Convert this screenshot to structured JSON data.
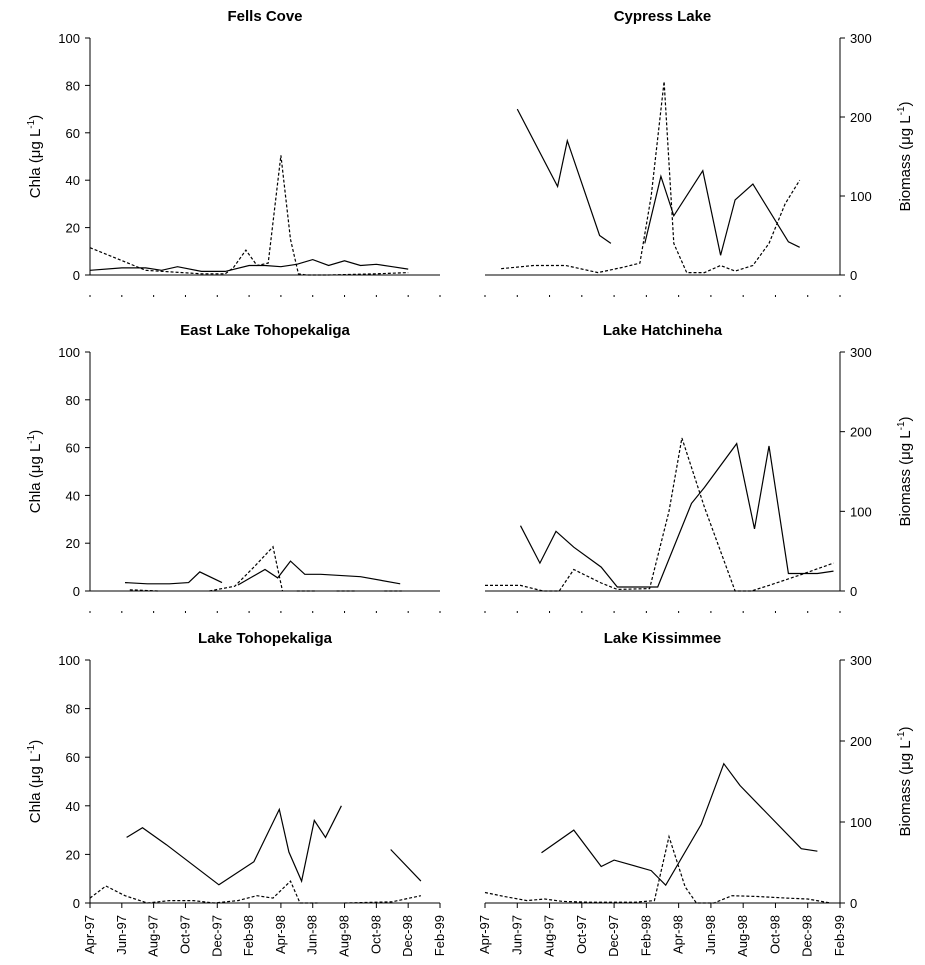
{
  "figure": {
    "left_axis_label": "Chla (μg L",
    "left_axis_sup": "-1",
    "left_axis_close": ")",
    "right_axis_label": "Biomass (μg L",
    "right_axis_sup": "-1",
    "right_axis_close": ")",
    "left_ticks": [
      "0",
      "20",
      "40",
      "60",
      "80",
      "100"
    ],
    "right_ticks": [
      "0",
      "100",
      "200",
      "300"
    ],
    "x_ticks": [
      "Apr-97",
      "Jun-97",
      "Aug-97",
      "Oct-97",
      "Dec-97",
      "Feb-98",
      "Apr-98",
      "Jun-98",
      "Aug-98",
      "Oct-98",
      "Dec-98",
      "Feb-99"
    ]
  },
  "chart_data": [
    {
      "type": "line",
      "title": "Fells Cove",
      "ylabel": "Chla (μg L-1)",
      "ylim": [
        0,
        100
      ],
      "xlim": [
        0,
        22
      ],
      "series": [
        {
          "style": "solid",
          "points": [
            [
              0,
              2
            ],
            [
              2,
              3
            ],
            [
              3.5,
              3
            ],
            [
              4.5,
              2
            ],
            [
              5.5,
              3.5
            ],
            [
              7,
              1.5
            ],
            [
              8.5,
              1.5
            ],
            [
              10,
              4
            ],
            [
              11,
              4
            ],
            [
              12,
              3.5
            ],
            [
              13,
              4.5
            ],
            [
              14,
              6.5
            ],
            [
              15,
              4
            ],
            [
              16,
              6
            ],
            [
              17,
              4
            ],
            [
              18,
              4.5
            ],
            [
              19,
              3.5
            ],
            [
              20,
              2.5
            ]
          ]
        },
        {
          "style": "dashed",
          "points": [
            [
              0,
              11.5
            ],
            [
              3.5,
              2
            ],
            [
              7,
              0.5
            ],
            [
              8.5,
              0.5
            ],
            [
              9,
              3
            ],
            [
              9.8,
              10.5
            ],
            [
              10.5,
              4
            ],
            [
              11.2,
              5
            ],
            [
              12,
              50.5
            ],
            [
              12.6,
              15
            ],
            [
              13.1,
              0.5
            ],
            [
              13.6,
              0
            ],
            [
              15,
              0
            ],
            [
              18,
              0.5
            ],
            [
              20,
              1
            ]
          ]
        }
      ]
    },
    {
      "type": "line",
      "title": "Cypress Lake",
      "ylabel": "Biomass (μg L-1)",
      "ylim": [
        0,
        300
      ],
      "xlim": [
        0,
        22
      ],
      "series": [
        {
          "style": "solid",
          "points": [
            [
              2,
              210
            ],
            [
              4.5,
              112
            ],
            [
              5.1,
              170
            ],
            [
              7.1,
              50
            ],
            [
              7.8,
              40
            ],
            [
              null,
              null
            ],
            [
              9.9,
              40
            ],
            [
              10.9,
              125
            ],
            [
              11.7,
              75
            ],
            [
              13.5,
              132
            ],
            [
              14.6,
              25
            ],
            [
              15.5,
              95
            ],
            [
              16.6,
              115
            ],
            [
              18.8,
              42
            ],
            [
              19.5,
              35
            ]
          ]
        },
        {
          "style": "dashed",
          "points": [
            [
              1,
              8
            ],
            [
              3,
              12
            ],
            [
              5,
              12
            ],
            [
              7,
              3
            ],
            [
              8.6,
              10
            ],
            [
              9.6,
              15
            ],
            [
              10.3,
              100
            ],
            [
              11.1,
              245
            ],
            [
              11.7,
              40
            ],
            [
              12.5,
              3
            ],
            [
              13.6,
              3
            ],
            [
              14.6,
              12
            ],
            [
              15.5,
              5
            ],
            [
              16.6,
              12
            ],
            [
              17.6,
              40
            ],
            [
              18.6,
              90
            ],
            [
              19.5,
              120
            ]
          ]
        }
      ]
    },
    {
      "type": "line",
      "title": "East Lake Tohopekaliga",
      "ylabel": "Chla (μg L-1)",
      "ylim": [
        0,
        100
      ],
      "xlim": [
        0,
        22
      ],
      "series": [
        {
          "style": "solid",
          "points": [
            [
              2.2,
              3.5
            ],
            [
              3.6,
              3
            ],
            [
              5,
              3
            ],
            [
              6.2,
              3.5
            ],
            [
              6.9,
              8
            ],
            [
              8.3,
              3.5
            ],
            [
              null,
              null
            ],
            [
              9.3,
              2.5
            ],
            [
              11,
              9
            ],
            [
              11.8,
              5.5
            ],
            [
              12.6,
              12.5
            ],
            [
              13.5,
              7
            ],
            [
              14.5,
              7
            ],
            [
              17,
              6
            ],
            [
              19.5,
              3
            ]
          ]
        },
        {
          "style": "dashed",
          "points": [
            [
              2.5,
              0.5
            ],
            [
              4.3,
              0
            ],
            [
              null,
              null
            ],
            [
              7.5,
              0
            ],
            [
              9.1,
              2
            ],
            [
              10.3,
              10
            ],
            [
              11.5,
              18.5
            ],
            [
              12.1,
              0
            ],
            [
              null,
              null
            ],
            [
              13,
              0
            ],
            [
              14.2,
              0
            ],
            [
              null,
              null
            ],
            [
              15.5,
              0
            ],
            [
              16.7,
              0
            ],
            [
              null,
              null
            ],
            [
              18.5,
              0
            ],
            [
              19.6,
              0
            ]
          ]
        }
      ]
    },
    {
      "type": "line",
      "title": "Lake Hatchineha",
      "ylabel": "Biomass (μg L-1)",
      "ylim": [
        0,
        300
      ],
      "xlim": [
        0,
        22
      ],
      "series": [
        {
          "style": "solid",
          "points": [
            [
              2.2,
              82
            ],
            [
              3.4,
              35
            ],
            [
              4.4,
              75
            ],
            [
              5.5,
              55
            ],
            [
              7.2,
              30
            ],
            [
              8.2,
              5
            ],
            [
              10.7,
              5
            ],
            [
              12.8,
              110
            ],
            [
              13.6,
              130
            ],
            [
              15.6,
              185
            ],
            [
              16.7,
              78
            ],
            [
              17.6,
              182
            ],
            [
              18.8,
              22
            ],
            [
              20.6,
              22
            ],
            [
              21.6,
              25
            ]
          ]
        },
        {
          "style": "dashed",
          "points": [
            [
              0,
              7
            ],
            [
              2.2,
              7
            ],
            [
              3.6,
              0
            ],
            [
              4.6,
              0
            ],
            [
              5.5,
              27
            ],
            [
              7.2,
              10
            ],
            [
              8.2,
              2
            ],
            [
              10.2,
              3
            ],
            [
              11.4,
              100
            ],
            [
              12.2,
              192
            ],
            [
              13.6,
              105
            ],
            [
              15.5,
              0
            ],
            [
              16.5,
              0
            ],
            [
              17.6,
              7
            ],
            [
              19.5,
              20
            ],
            [
              21.6,
              35
            ]
          ]
        }
      ]
    },
    {
      "type": "line",
      "title": "Lake Tohopekaliga",
      "ylabel": "Chla (μg L-1)",
      "ylim": [
        0,
        100
      ],
      "xlim": [
        0,
        22
      ],
      "series": [
        {
          "style": "solid",
          "points": [
            [
              2.3,
              27
            ],
            [
              3.3,
              31
            ],
            [
              4.8,
              24
            ],
            [
              8.1,
              7.5
            ],
            [
              10.3,
              17
            ],
            [
              11.9,
              38.5
            ],
            [
              12.5,
              21
            ],
            [
              13.3,
              9
            ],
            [
              14.1,
              34
            ],
            [
              14.8,
              27
            ],
            [
              15.8,
              40
            ],
            [
              null,
              null
            ],
            [
              18.9,
              22
            ],
            [
              20.8,
              9
            ]
          ]
        },
        {
          "style": "dashed",
          "points": [
            [
              0,
              2
            ],
            [
              1,
              7
            ],
            [
              2.2,
              3
            ],
            [
              3.6,
              0
            ],
            [
              5,
              1
            ],
            [
              6.5,
              1
            ],
            [
              7.8,
              0
            ],
            [
              9.3,
              1
            ],
            [
              10.5,
              3
            ],
            [
              11.5,
              2
            ],
            [
              12.6,
              9
            ],
            [
              13.2,
              0
            ],
            [
              14.3,
              0
            ],
            [
              null,
              null
            ],
            [
              16,
              0
            ],
            [
              19,
              0.5
            ],
            [
              20.8,
              3
            ]
          ]
        }
      ]
    },
    {
      "type": "line",
      "title": "Lake Kissimmee",
      "ylabel": "Biomass (μg L-1)",
      "ylim": [
        0,
        300
      ],
      "xlim": [
        0,
        22
      ],
      "series": [
        {
          "style": "solid",
          "points": [
            [
              3.5,
              62
            ],
            [
              5.5,
              90
            ],
            [
              7.2,
              45
            ],
            [
              8,
              53
            ],
            [
              10.3,
              40
            ],
            [
              11.2,
              22
            ],
            [
              13.4,
              97
            ],
            [
              14.8,
              172
            ],
            [
              15.8,
              145
            ],
            [
              19.6,
              67
            ],
            [
              20.6,
              64
            ]
          ]
        },
        {
          "style": "dashed",
          "points": [
            [
              0,
              13
            ],
            [
              1.2,
              8
            ],
            [
              2.6,
              3
            ],
            [
              3.7,
              5
            ],
            [
              4.8,
              2
            ],
            [
              6.4,
              1
            ],
            [
              8,
              1
            ],
            [
              9.3,
              1
            ],
            [
              10.5,
              3
            ],
            [
              11.4,
              82
            ],
            [
              12.4,
              20
            ],
            [
              13.1,
              0
            ],
            [
              14.2,
              0
            ],
            [
              15.3,
              9
            ],
            [
              16.9,
              8
            ],
            [
              18.7,
              6
            ],
            [
              20,
              5
            ],
            [
              21.4,
              0
            ]
          ]
        }
      ]
    }
  ]
}
